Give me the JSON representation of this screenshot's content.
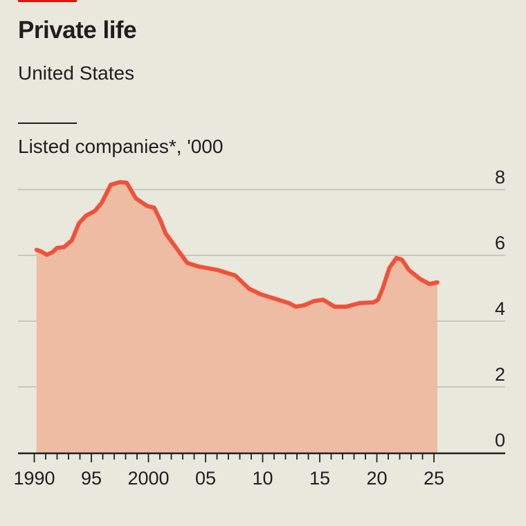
{
  "header": {
    "title": "Private life",
    "subtitle": "United States",
    "accent_color": "#e3120b"
  },
  "chart_data": {
    "type": "area",
    "title": "Private life",
    "subtitle": "United States",
    "ylabel": "Listed companies*, '000",
    "xlabel": "",
    "ylim": [
      0,
      8
    ],
    "xlim": [
      1990,
      2025.5
    ],
    "yticks": [
      0,
      2,
      4,
      6,
      8
    ],
    "ytick_labels": [
      "0",
      "2",
      "4",
      "6",
      "8"
    ],
    "xticks": [
      1990,
      1995,
      2000,
      2005,
      2010,
      2015,
      2020,
      2025
    ],
    "xtick_labels": [
      "1990",
      "95",
      "2000",
      "05",
      "10",
      "15",
      "20",
      "25"
    ],
    "grid": true,
    "line_color": "#f0513a",
    "fill_color": "#edbca3",
    "series": [
      {
        "name": "Listed companies",
        "x": [
          1990.2,
          1990.6,
          1991.1,
          1991.6,
          1992.0,
          1992.6,
          1993.3,
          1993.9,
          1994.5,
          1995.3,
          1995.9,
          1996.7,
          1997.5,
          1998.1,
          1998.9,
          1999.9,
          2000.5,
          2001.1,
          2001.5,
          2002.3,
          2003.4,
          2004.4,
          2006.0,
          2007.6,
          2008.8,
          2009.8,
          2011.2,
          2012.3,
          2012.9,
          2013.6,
          2014.5,
          2015.3,
          2016.3,
          2017.3,
          2018.5,
          2019.7,
          2020.1,
          2020.5,
          2021.1,
          2021.7,
          2022.2,
          2022.8,
          2023.8,
          2024.6,
          2025.3
        ],
        "values": [
          6.17,
          6.12,
          6.02,
          6.1,
          6.23,
          6.25,
          6.46,
          6.97,
          7.2,
          7.35,
          7.6,
          8.15,
          8.23,
          8.21,
          7.73,
          7.5,
          7.45,
          7.03,
          6.67,
          6.29,
          5.77,
          5.66,
          5.56,
          5.39,
          4.99,
          4.82,
          4.67,
          4.55,
          4.44,
          4.48,
          4.61,
          4.65,
          4.44,
          4.44,
          4.55,
          4.57,
          4.65,
          4.99,
          5.62,
          5.92,
          5.87,
          5.56,
          5.28,
          5.13,
          5.18
        ]
      }
    ]
  }
}
